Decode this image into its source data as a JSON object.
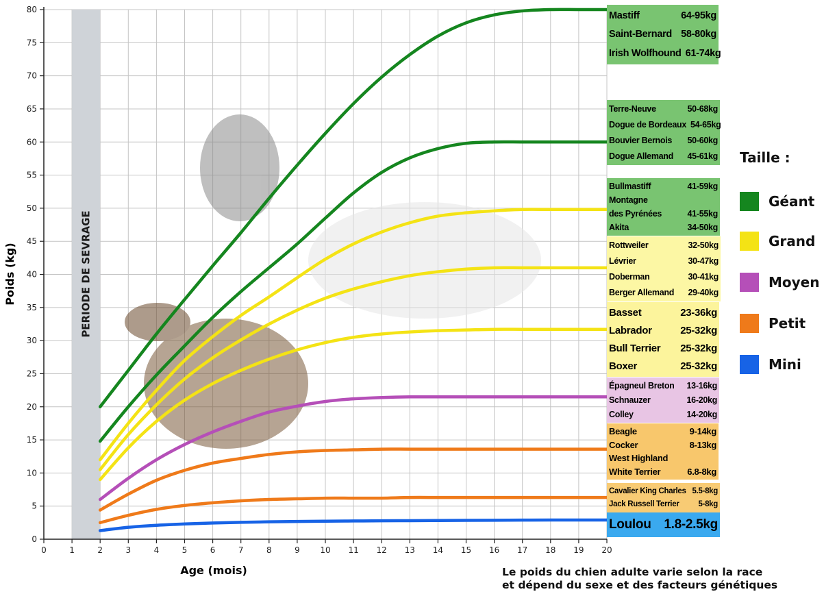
{
  "chart_data": {
    "type": "line",
    "xlabel": "Age (mois)",
    "ylabel": "Poids (kg)",
    "xlim": [
      0,
      20
    ],
    "ylim": [
      0,
      80
    ],
    "x_ticks": [
      0,
      1,
      2,
      3,
      4,
      5,
      6,
      7,
      8,
      9,
      10,
      11,
      12,
      13,
      14,
      15,
      16,
      17,
      18,
      19,
      20
    ],
    "y_ticks": [
      0,
      5,
      10,
      15,
      20,
      25,
      30,
      35,
      40,
      45,
      50,
      55,
      60,
      65,
      70,
      75,
      80
    ],
    "grid": true,
    "weaning_period": {
      "label": "PERIODE DE SEVRAGE",
      "x_start": 1,
      "x_end": 2
    },
    "series": [
      {
        "size": "Géant",
        "color": "#15861f",
        "x": [
          2,
          3,
          4,
          5,
          6,
          7,
          8,
          9,
          10,
          11,
          12,
          13,
          14,
          15,
          16,
          17,
          18,
          19,
          20
        ],
        "y": [
          20,
          25.5,
          31,
          36.2,
          41.3,
          46.3,
          51.5,
          56.5,
          61.3,
          65.8,
          69.8,
          73.2,
          76,
          78,
          79.2,
          79.8,
          80,
          80,
          80
        ]
      },
      {
        "size": "Géant",
        "color": "#15861f",
        "x": [
          2,
          3,
          4,
          5,
          6,
          7,
          8,
          9,
          10,
          11,
          12,
          13,
          14,
          15,
          16,
          17,
          18,
          19,
          20
        ],
        "y": [
          14.8,
          20,
          24.8,
          29.2,
          33.5,
          37.4,
          41,
          44.6,
          48.5,
          52.3,
          55.4,
          57.6,
          59,
          59.8,
          60,
          60,
          60,
          60,
          60
        ]
      },
      {
        "size": "Grand",
        "color": "#f4e315",
        "x": [
          2,
          3,
          4,
          5,
          6,
          7,
          8,
          9,
          10,
          11,
          12,
          13,
          14,
          15,
          16,
          17,
          18,
          19,
          20
        ],
        "y": [
          12,
          17.5,
          22.5,
          27,
          30.6,
          33.8,
          36.6,
          39.5,
          42.3,
          44.6,
          46.4,
          47.8,
          48.8,
          49.3,
          49.6,
          49.8,
          49.8,
          49.8,
          49.8
        ]
      },
      {
        "size": "Grand",
        "color": "#f4e315",
        "x": [
          2,
          3,
          4,
          5,
          6,
          7,
          8,
          9,
          10,
          11,
          12,
          13,
          14,
          15,
          16,
          17,
          18,
          19,
          20
        ],
        "y": [
          10.5,
          15.8,
          20.3,
          24.2,
          27.4,
          30.1,
          32.5,
          34.6,
          36.4,
          37.8,
          38.9,
          39.8,
          40.4,
          40.8,
          41,
          41,
          41,
          41,
          41
        ]
      },
      {
        "size": "Grand",
        "color": "#f4e315",
        "x": [
          2,
          3,
          4,
          5,
          6,
          7,
          8,
          9,
          10,
          11,
          12,
          13,
          14,
          15,
          16,
          17,
          18,
          19,
          20
        ],
        "y": [
          9,
          13.8,
          17.8,
          21,
          23.5,
          25.5,
          27.2,
          28.6,
          29.7,
          30.5,
          31,
          31.3,
          31.5,
          31.6,
          31.7,
          31.7,
          31.7,
          31.7,
          31.7
        ]
      },
      {
        "size": "Moyen",
        "color": "#b54fb8",
        "x": [
          2,
          3,
          4,
          5,
          6,
          7,
          8,
          9,
          10,
          11,
          12,
          13,
          14,
          15,
          16,
          17,
          18,
          19,
          20
        ],
        "y": [
          6,
          9.2,
          12,
          14.3,
          16.2,
          17.8,
          19.2,
          20.1,
          20.8,
          21.2,
          21.4,
          21.5,
          21.5,
          21.5,
          21.5,
          21.5,
          21.5,
          21.5,
          21.5
        ]
      },
      {
        "size": "Petit",
        "color": "#ef7a1a",
        "x": [
          2,
          3,
          4,
          5,
          6,
          7,
          8,
          9,
          10,
          11,
          12,
          13,
          14,
          15,
          16,
          17,
          18,
          19,
          20
        ],
        "y": [
          4.4,
          6.8,
          8.9,
          10.4,
          11.5,
          12.2,
          12.8,
          13.2,
          13.4,
          13.5,
          13.6,
          13.6,
          13.6,
          13.6,
          13.6,
          13.6,
          13.6,
          13.6,
          13.6
        ]
      },
      {
        "size": "Petit",
        "color": "#ef7a1a",
        "x": [
          2,
          3,
          4,
          5,
          6,
          7,
          8,
          9,
          10,
          11,
          12,
          13,
          14,
          15,
          16,
          17,
          18,
          19,
          20
        ],
        "y": [
          2.5,
          3.6,
          4.5,
          5.1,
          5.5,
          5.8,
          6,
          6.1,
          6.2,
          6.2,
          6.2,
          6.3,
          6.3,
          6.3,
          6.3,
          6.3,
          6.3,
          6.3,
          6.3
        ]
      },
      {
        "size": "Mini",
        "color": "#1763e6",
        "x": [
          2,
          3,
          4,
          5,
          6,
          7,
          8,
          9,
          10,
          11,
          12,
          13,
          14,
          15,
          16,
          17,
          18,
          19,
          20
        ],
        "y": [
          1.3,
          1.8,
          2.1,
          2.3,
          2.45,
          2.55,
          2.62,
          2.68,
          2.72,
          2.75,
          2.78,
          2.8,
          2.82,
          2.84,
          2.86,
          2.88,
          2.9,
          2.9,
          2.9
        ]
      }
    ],
    "breed_groups": [
      {
        "color": "#79c471",
        "font_size": 14.5,
        "breeds": [
          {
            "name": "Mastiff",
            "weight": "64-95kg"
          },
          {
            "name": "Saint-Bernard",
            "weight": "58-80kg"
          },
          {
            "name": "Irish Wolfhound",
            "weight": "61-74kg"
          }
        ]
      },
      {
        "color": "#79c471",
        "font_size": 12.5,
        "breeds": [
          {
            "name": "Terre-Neuve",
            "weight": "50-68kg"
          },
          {
            "name": "Dogue de Bordeaux",
            "weight": "54-65kg"
          },
          {
            "name": "Bouvier Bernois",
            "weight": "50-60kg"
          },
          {
            "name": "Dogue Allemand",
            "weight": "45-61kg"
          }
        ]
      },
      {
        "color": "#79c471",
        "font_size": 12.5,
        "breeds": [
          {
            "name": "Bullmastiff",
            "weight": "41-59kg"
          },
          {
            "name": "Montagne",
            "weight": ""
          },
          {
            "name": "des Pyrénées",
            "weight": "41-55kg"
          },
          {
            "name": "Akita",
            "weight": "34-50kg"
          }
        ]
      },
      {
        "color": "#fcf7a4",
        "font_size": 12.5,
        "breeds": [
          {
            "name": "Rottweiler",
            "weight": "32-50kg"
          },
          {
            "name": "Lévrier",
            "weight": "30-47kg"
          },
          {
            "name": "Doberman",
            "weight": "30-41kg"
          },
          {
            "name": "Berger Allemand",
            "weight": "29-40kg"
          }
        ]
      },
      {
        "color": "#fcf49c",
        "font_size": 15,
        "breeds": [
          {
            "name": "Basset",
            "weight": "23-36kg"
          },
          {
            "name": "Labrador",
            "weight": "25-32kg"
          },
          {
            "name": "Bull Terrier",
            "weight": "25-32kg"
          },
          {
            "name": "Boxer",
            "weight": "25-32kg"
          }
        ]
      },
      {
        "color": "#e8c5e4",
        "font_size": 12.5,
        "breeds": [
          {
            "name": "Épagneul Breton",
            "weight": "13-16kg"
          },
          {
            "name": "Schnauzer",
            "weight": "16-20kg"
          },
          {
            "name": "Colley",
            "weight": "14-20kg"
          }
        ]
      },
      {
        "color": "#f8c76c",
        "font_size": 13,
        "breeds": [
          {
            "name": "Beagle",
            "weight": "9-14kg"
          },
          {
            "name": "Cocker",
            "weight": "8-13kg"
          },
          {
            "name": "West Highland",
            "weight": ""
          },
          {
            "name": "White Terrier",
            "weight": "6.8-8kg"
          }
        ]
      },
      {
        "color": "#f8cb74",
        "font_size": 11.5,
        "breeds": [
          {
            "name": "Cavalier King Charles",
            "weight": "5.5-8kg"
          },
          {
            "name": "Jack Russell Terrier",
            "weight": "5-8kg"
          }
        ]
      },
      {
        "color": "#3aa9ef",
        "font_size": 19,
        "breeds": [
          {
            "name": "Loulou",
            "weight": "1.8-2.5kg"
          }
        ]
      }
    ],
    "legend": {
      "title": "Taille :",
      "items": [
        {
          "label": "Géant",
          "color": "#15861f"
        },
        {
          "label": "Grand",
          "color": "#f4e315"
        },
        {
          "label": "Moyen",
          "color": "#b54fb8"
        },
        {
          "label": "Petit",
          "color": "#ef7a1a"
        },
        {
          "label": "Mini",
          "color": "#1763e6"
        }
      ]
    },
    "note": [
      "Le poids du chien adulte varie selon la race",
      "et dépend du sexe et des facteurs génétiques"
    ]
  }
}
